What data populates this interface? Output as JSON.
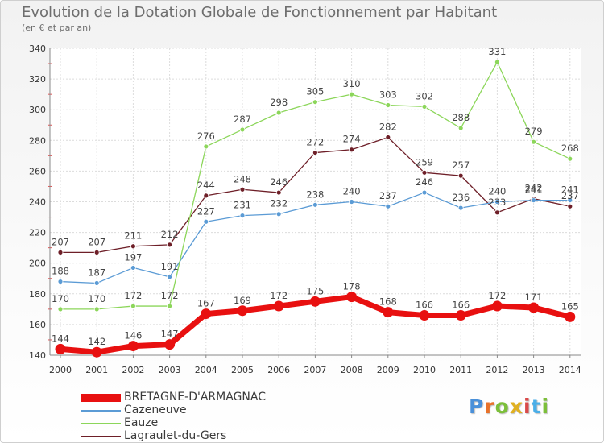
{
  "title": "Evolution de la Dotation Globale de Fonctionnement par Habitant",
  "subtitle": "(en € et par an)",
  "logo": {
    "letters": [
      "P",
      "r",
      "o",
      "x",
      "i",
      "t",
      "i"
    ],
    "colors": [
      "#4a90d9",
      "#e8722a",
      "#7cbf3a",
      "#e0b020",
      "#d94a4a",
      "#4aaee8",
      "#7cbf3a"
    ]
  },
  "chart_data": {
    "type": "line",
    "x": [
      "2000",
      "2001",
      "2002",
      "2003",
      "2004",
      "2005",
      "2006",
      "2007",
      "2008",
      "2009",
      "2010",
      "2011",
      "2012",
      "2013",
      "2014"
    ],
    "ylim": [
      140,
      340
    ],
    "yticks": [
      140,
      160,
      180,
      200,
      220,
      240,
      260,
      280,
      300,
      320,
      340
    ],
    "grid": true,
    "legend_position": "bottom-left",
    "series": [
      {
        "name": "BRETAGNE-D'ARMAGNAC",
        "color": "#e81010",
        "values": [
          144,
          142,
          146,
          147,
          167,
          169,
          172,
          175,
          178,
          168,
          166,
          166,
          172,
          171,
          165
        ]
      },
      {
        "name": "Cazeneuve",
        "color": "#5b9bd5",
        "values": [
          188,
          187,
          197,
          191,
          227,
          231,
          232,
          238,
          240,
          237,
          246,
          236,
          240,
          241,
          241
        ]
      },
      {
        "name": "Eauze",
        "color": "#8cd65a",
        "values": [
          170,
          170,
          172,
          172,
          276,
          287,
          298,
          305,
          310,
          303,
          302,
          288,
          331,
          279,
          268
        ]
      },
      {
        "name": "Lagraulet-du-Gers",
        "color": "#6e1f28",
        "values": [
          207,
          207,
          211,
          212,
          244,
          248,
          246,
          272,
          274,
          282,
          259,
          257,
          233,
          242,
          237
        ]
      }
    ]
  }
}
